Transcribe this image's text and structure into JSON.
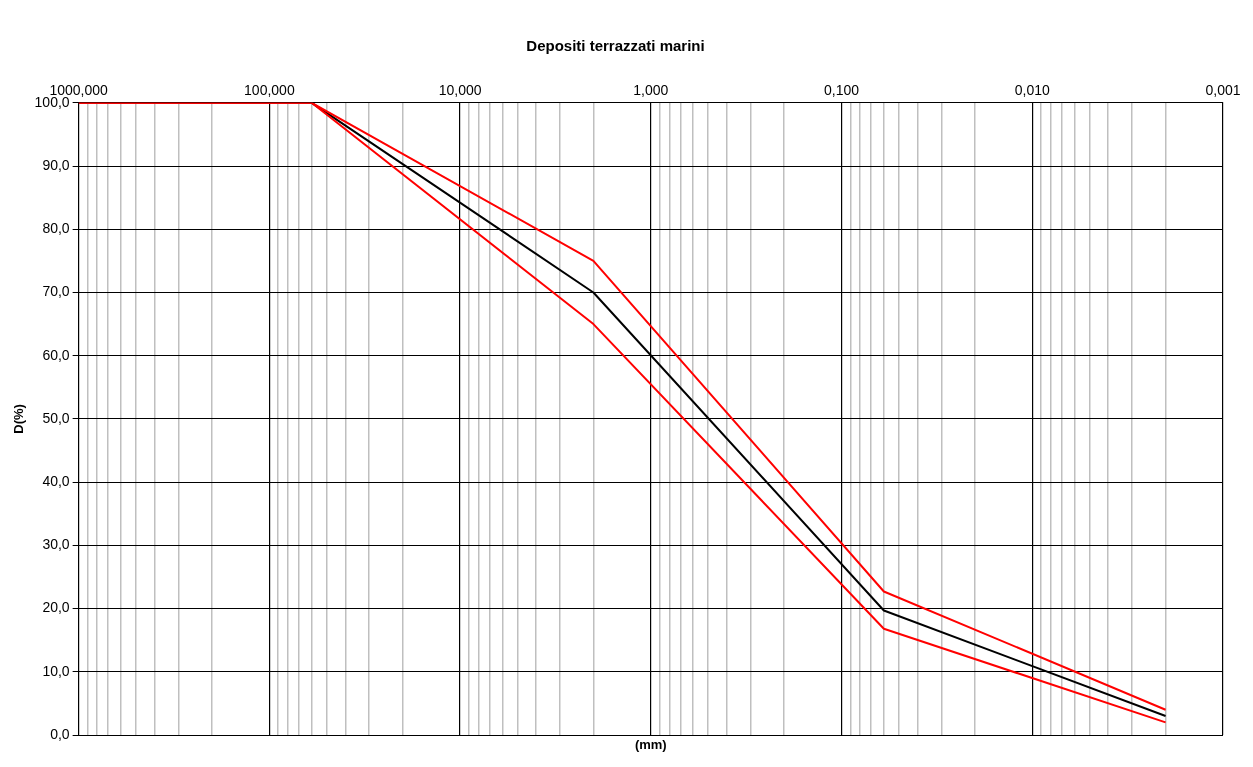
{
  "chart_data": {
    "type": "line",
    "title": "Depositi terrazzati marini",
    "xlabel": "(mm)",
    "ylabel": "D(%)",
    "log": "x",
    "grid": true,
    "legend": false,
    "marker": "none",
    "line_style": "solid",
    "xlim": [
      1000,
      0.001
    ],
    "ylim": [
      0,
      100
    ],
    "xticks": [
      {
        "value": 1000,
        "label": "1000,000"
      },
      {
        "value": 900,
        "label": null
      },
      {
        "value": 800,
        "label": null
      },
      {
        "value": 700,
        "label": null
      },
      {
        "value": 600,
        "label": null
      },
      {
        "value": 500,
        "label": null
      },
      {
        "value": 400,
        "label": null
      },
      {
        "value": 300,
        "label": null
      },
      {
        "value": 200,
        "label": null
      },
      {
        "value": 100,
        "label": "100,000"
      },
      {
        "value": 90,
        "label": null
      },
      {
        "value": 80,
        "label": null
      },
      {
        "value": 70,
        "label": null
      },
      {
        "value": 60,
        "label": null
      },
      {
        "value": 50,
        "label": null
      },
      {
        "value": 40,
        "label": null
      },
      {
        "value": 30,
        "label": null
      },
      {
        "value": 20,
        "label": null
      },
      {
        "value": 10,
        "label": "10,000"
      },
      {
        "value": 9,
        "label": null
      },
      {
        "value": 8,
        "label": null
      },
      {
        "value": 7,
        "label": null
      },
      {
        "value": 6,
        "label": null
      },
      {
        "value": 5,
        "label": null
      },
      {
        "value": 4,
        "label": null
      },
      {
        "value": 3,
        "label": null
      },
      {
        "value": 2,
        "label": null
      },
      {
        "value": 1,
        "label": "1,000"
      },
      {
        "value": 0.9,
        "label": null
      },
      {
        "value": 0.8,
        "label": null
      },
      {
        "value": 0.7,
        "label": null
      },
      {
        "value": 0.6,
        "label": null
      },
      {
        "value": 0.5,
        "label": null
      },
      {
        "value": 0.4,
        "label": null
      },
      {
        "value": 0.3,
        "label": null
      },
      {
        "value": 0.2,
        "label": null
      },
      {
        "value": 0.1,
        "label": "0,100"
      },
      {
        "value": 0.09,
        "label": null
      },
      {
        "value": 0.08,
        "label": null
      },
      {
        "value": 0.07,
        "label": null
      },
      {
        "value": 0.06,
        "label": null
      },
      {
        "value": 0.05,
        "label": null
      },
      {
        "value": 0.04,
        "label": null
      },
      {
        "value": 0.03,
        "label": null
      },
      {
        "value": 0.02,
        "label": null
      },
      {
        "value": 0.01,
        "label": "0,010"
      },
      {
        "value": 0.009,
        "label": null
      },
      {
        "value": 0.008,
        "label": null
      },
      {
        "value": 0.007,
        "label": null
      },
      {
        "value": 0.006,
        "label": null
      },
      {
        "value": 0.005,
        "label": null
      },
      {
        "value": 0.004,
        "label": null
      },
      {
        "value": 0.003,
        "label": null
      },
      {
        "value": 0.002,
        "label": null
      },
      {
        "value": 0.001,
        "label": "0,001"
      }
    ],
    "yticks": [
      {
        "value": 0,
        "label": "0,0"
      },
      {
        "value": 10,
        "label": "10,0"
      },
      {
        "value": 20,
        "label": "20,0"
      },
      {
        "value": 30,
        "label": "30,0"
      },
      {
        "value": 40,
        "label": "40,0"
      },
      {
        "value": 50,
        "label": "50,0"
      },
      {
        "value": 60,
        "label": "60,0"
      },
      {
        "value": 70,
        "label": "70,0"
      },
      {
        "value": 80,
        "label": "80,0"
      },
      {
        "value": 90,
        "label": "90,0"
      },
      {
        "value": 100,
        "label": "100,0"
      }
    ],
    "series": [
      {
        "color": "#ff0000",
        "x": [
          1000,
          60,
          2,
          0.06,
          0.002
        ],
        "values": [
          100,
          100,
          75,
          22.7,
          4
        ]
      },
      {
        "color": "#ff0000",
        "x": [
          1000,
          60,
          2,
          0.06,
          0.002
        ],
        "values": [
          100,
          100,
          65,
          16.8,
          2
        ]
      },
      {
        "color": "#000000",
        "x": [
          1000,
          60,
          2,
          0.06,
          0.002
        ],
        "values": [
          100,
          100,
          70,
          19.7,
          3
        ]
      }
    ]
  }
}
